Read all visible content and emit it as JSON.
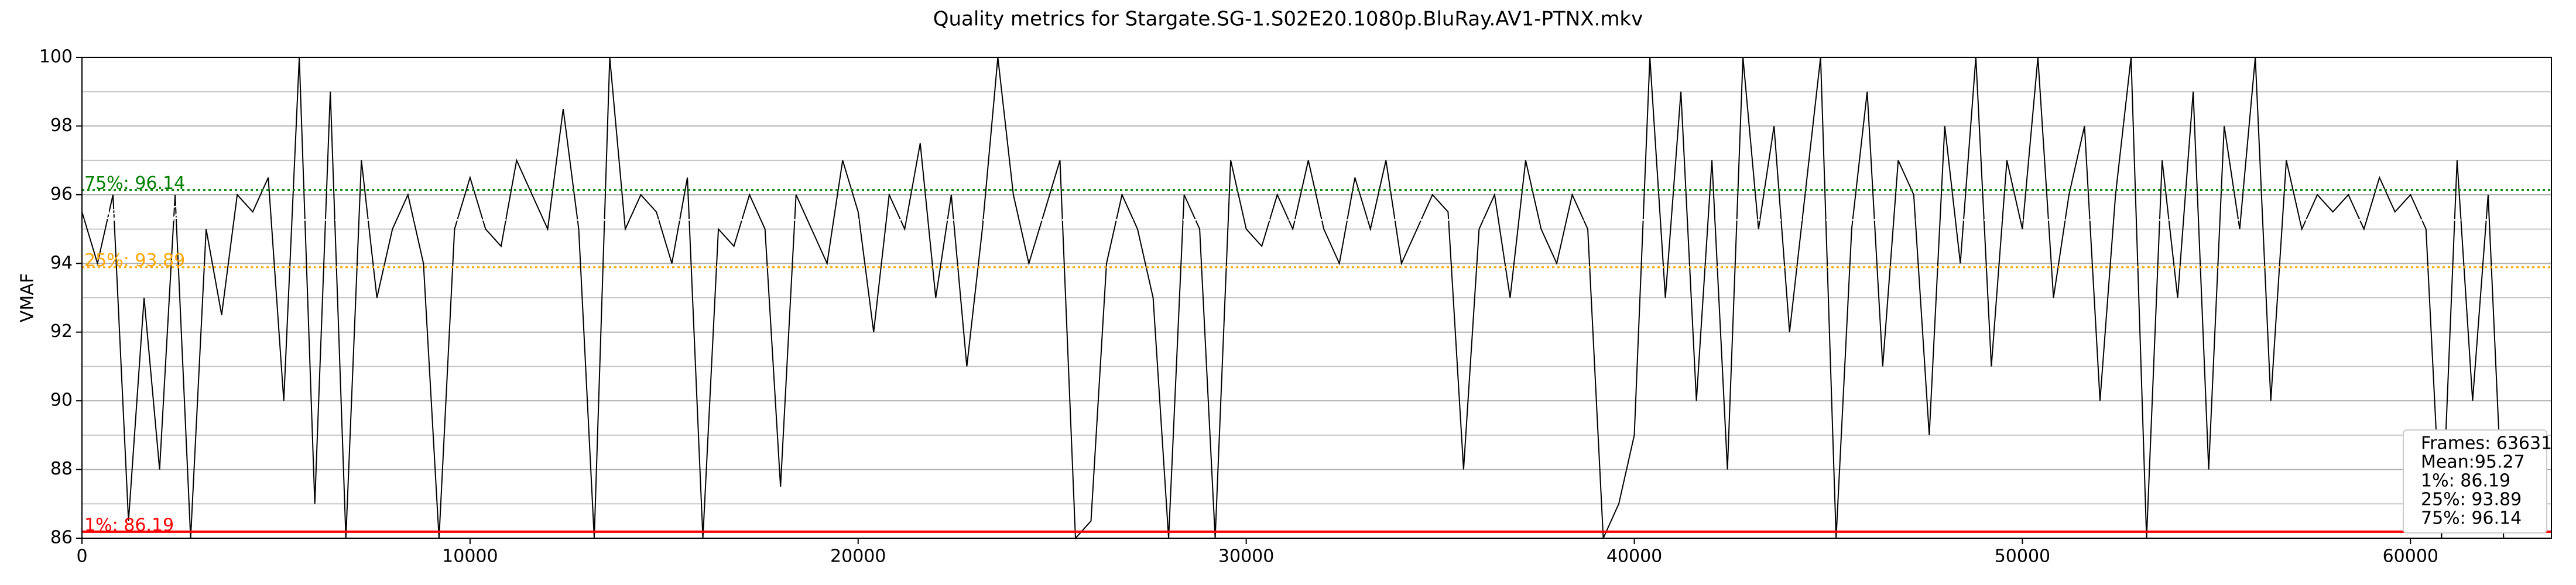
{
  "chart_data": {
    "type": "line",
    "title": "Quality metrics for Stargate.SG-1.S02E20.1080p.BluRay.AV1-PTNX.mkv",
    "ylabel": "VMAF",
    "color": "#000000",
    "x": [
      0,
      400,
      800,
      1200,
      1600,
      2000,
      2400,
      2800,
      3200,
      3600,
      4000,
      4400,
      4800,
      5200,
      5600,
      6000,
      6400,
      6800,
      7200,
      7600,
      8000,
      8400,
      8800,
      9200,
      9600,
      10000,
      10400,
      10800,
      11200,
      11600,
      12000,
      12400,
      12800,
      13200,
      13600,
      14000,
      14400,
      14800,
      15200,
      15600,
      16000,
      16400,
      16800,
      17200,
      17600,
      18000,
      18400,
      18800,
      19200,
      19600,
      20000,
      20400,
      20800,
      21200,
      21600,
      22000,
      22400,
      22800,
      23200,
      23600,
      24000,
      24400,
      24800,
      25200,
      25600,
      26000,
      26400,
      26800,
      27200,
      27600,
      28000,
      28400,
      28800,
      29200,
      29600,
      30000,
      30400,
      30800,
      31200,
      31600,
      32000,
      32400,
      32800,
      33200,
      33600,
      34000,
      34400,
      34800,
      35200,
      35600,
      36000,
      36400,
      36800,
      37200,
      37600,
      38000,
      38400,
      38800,
      39200,
      39600,
      40000,
      40400,
      40800,
      41200,
      41600,
      42000,
      42400,
      42800,
      43200,
      43600,
      44000,
      44400,
      44800,
      45200,
      45600,
      46000,
      46400,
      46800,
      47200,
      47600,
      48000,
      48400,
      48800,
      49200,
      49600,
      50000,
      50400,
      50800,
      51200,
      51600,
      52000,
      52400,
      52800,
      53200,
      53600,
      54000,
      54400,
      54800,
      55200,
      55600,
      56000,
      56400,
      56800,
      57200,
      57600,
      58000,
      58400,
      58800,
      59200,
      59600,
      60000,
      60400,
      60800,
      61200,
      61600,
      62000,
      62400
    ],
    "values": [
      95.5,
      94,
      96,
      86.5,
      93,
      88,
      96,
      86,
      95,
      92.5,
      96,
      95.5,
      96.5,
      90,
      100,
      87,
      99,
      86,
      97,
      93,
      95,
      96,
      94,
      86,
      95,
      96.5,
      95,
      94.5,
      97,
      96,
      95,
      98.5,
      95,
      86,
      100,
      95,
      96,
      95.5,
      94,
      96.5,
      86,
      95,
      94.5,
      96,
      95,
      87.5,
      96,
      95,
      94,
      97,
      95.5,
      92,
      96,
      95,
      97.5,
      93,
      96,
      91,
      95,
      100,
      96,
      94,
      95.5,
      97,
      86,
      86.5,
      94,
      96,
      95,
      93,
      86,
      96,
      95,
      86,
      97,
      95,
      94.5,
      96,
      95,
      97,
      95,
      94,
      96.5,
      95,
      97,
      94,
      95,
      96,
      95.5,
      88,
      95,
      96,
      93,
      97,
      95,
      94,
      96,
      95,
      86,
      87,
      89,
      100,
      93,
      99,
      90,
      97,
      88,
      100,
      95,
      98,
      92,
      96,
      100,
      86,
      95,
      99,
      91,
      97,
      96,
      89,
      98,
      94,
      100,
      91,
      97,
      95,
      100,
      93,
      96,
      98,
      90,
      96,
      100,
      86,
      97,
      93,
      99,
      88,
      98,
      95,
      100,
      90,
      97,
      95,
      96,
      95.5,
      96,
      95,
      96.5,
      95.5,
      96,
      95,
      86,
      97,
      90,
      96,
      86
    ],
    "xlim": [
      0,
      63631
    ],
    "ylim": [
      86,
      100
    ],
    "xticks": [
      0,
      10000,
      20000,
      30000,
      40000,
      50000,
      60000
    ],
    "yticks": [
      86,
      88,
      90,
      92,
      94,
      96,
      98,
      100
    ],
    "yminorticks": [
      87,
      89,
      91,
      93,
      95,
      97,
      99
    ],
    "grid": true,
    "reference_lines": [
      {
        "label": "1%: 86.19",
        "value": 86.19,
        "color": "#ff0000",
        "dash": "solid"
      },
      {
        "label": "25%: 93.89",
        "value": 93.89,
        "color": "#ffa500",
        "dash": "dotted"
      },
      {
        "label": "Mean: 95.27",
        "value": 95.27,
        "color": "#ffffff",
        "dash": "dotted"
      },
      {
        "label": "75%: 96.14",
        "value": 96.14,
        "color": "#008000",
        "dash": "dotted"
      }
    ],
    "stats_box": [
      "Frames: 63631",
      "Mean:95.27",
      "1%: 86.19",
      "25%: 93.89",
      "75%: 96.14"
    ]
  }
}
